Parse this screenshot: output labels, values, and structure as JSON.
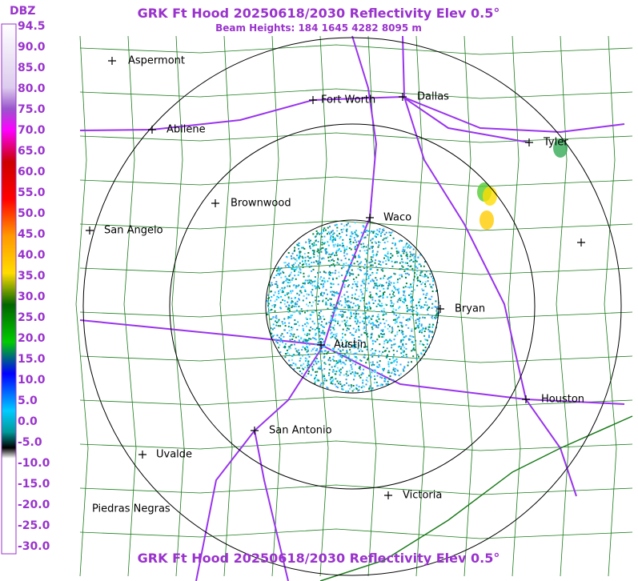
{
  "header": {
    "title": "GRK Ft Hood 20250618/2030 Reflectivity Elev 0.5°",
    "subtitle": "Beam Heights: 184 1645 4282 8095 m"
  },
  "legend": {
    "unit": "DBZ",
    "labels": [
      "94.5",
      "90.0",
      "85.0",
      "80.0",
      "75.0",
      "70.0",
      "65.0",
      "60.0",
      "55.0",
      "50.0",
      "45.0",
      "40.0",
      "35.0",
      "30.0",
      "25.0",
      "20.0",
      "15.0",
      "10.0",
      "5.0",
      "0.0",
      "-5.0",
      "-10.0",
      "-15.0",
      "-20.0",
      "-25.0",
      "-30.0"
    ]
  },
  "cities": [
    {
      "name": "Aspermont"
    },
    {
      "name": "Fort Worth"
    },
    {
      "name": "Dallas"
    },
    {
      "name": "Abilene"
    },
    {
      "name": "Tyler"
    },
    {
      "name": "Brownwood"
    },
    {
      "name": "Waco"
    },
    {
      "name": "San Angelo"
    },
    {
      "name": "Bryan"
    },
    {
      "name": "Austin"
    },
    {
      "name": "Houston"
    },
    {
      "name": "San Antonio"
    },
    {
      "name": "Uvalde"
    },
    {
      "name": "Piedras Negras"
    },
    {
      "name": "Victoria"
    }
  ],
  "footer": {
    "title": "GRK Ft Hood 20250618/2030 Reflectivity Elev 0.5°"
  }
}
